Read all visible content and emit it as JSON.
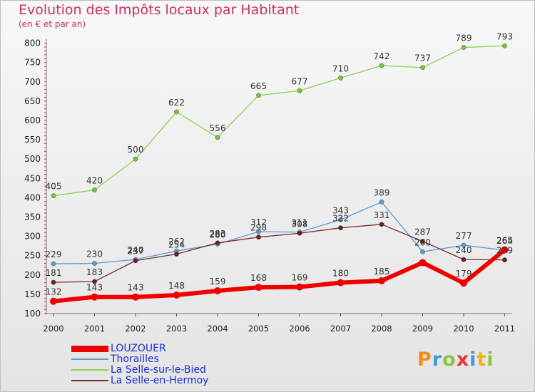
{
  "title": "Evolution des Impôts locaux par Habitant",
  "subtitle": "(en € et par an)",
  "logo": {
    "text": "Proxiti",
    "letters": [
      {
        "ch": "P",
        "color": "#f08a1c"
      },
      {
        "ch": "r",
        "color": "#3a9fd8"
      },
      {
        "ch": "o",
        "color": "#8bc540"
      },
      {
        "ch": "x",
        "color": "#e53a3a"
      },
      {
        "ch": "i",
        "color": "#3a9fd8"
      },
      {
        "ch": "t",
        "color": "#f0b41c"
      },
      {
        "ch": "i",
        "color": "#8bc540"
      }
    ]
  },
  "chart_data": {
    "type": "line",
    "title": "Evolution des Impôts locaux par Habitant",
    "subtitle": "(en € et par an)",
    "xlabel": "",
    "ylabel": "",
    "categories": [
      "2000",
      "2001",
      "2002",
      "2003",
      "2004",
      "2005",
      "2006",
      "2007",
      "2008",
      "2009",
      "2010",
      "2011"
    ],
    "ylim": [
      100,
      800
    ],
    "yticks": [
      100,
      150,
      200,
      250,
      300,
      350,
      400,
      450,
      500,
      550,
      600,
      650,
      700,
      750,
      800
    ],
    "grid": false,
    "legend_position": "bottom-left",
    "series": [
      {
        "name": "LOUZOUER",
        "color": "#ee0000",
        "marker": "#ee0000",
        "width": 6,
        "values": [
          132,
          143,
          143,
          148,
          159,
          168,
          169,
          180,
          185,
          232,
          179,
          265
        ],
        "labels": [
          "132",
          "143",
          "143",
          "148",
          "159",
          "168",
          "169",
          "180",
          "185",
          "",
          "179",
          "265"
        ]
      },
      {
        "name": "Thorailles",
        "color": "#5b9bd5",
        "marker": "#5b9bd5",
        "width": 1.3,
        "values": [
          229,
          230,
          240,
          262,
          280,
          312,
          311,
          343,
          389,
          260,
          277,
          264
        ],
        "labels": [
          "229",
          "230",
          "240",
          "262",
          "280",
          "312",
          "311",
          "343",
          "389",
          "260",
          "277",
          "264"
        ]
      },
      {
        "name": "La Selle-sur-le-Bied",
        "color": "#8fd14f",
        "marker": "#78c23a",
        "width": 1.3,
        "values": [
          405,
          420,
          500,
          622,
          556,
          665,
          677,
          710,
          742,
          737,
          789,
          793
        ],
        "labels": [
          "405",
          "420",
          "500",
          "622",
          "556",
          "665",
          "677",
          "710",
          "742",
          "737",
          "789",
          "793"
        ]
      },
      {
        "name": "La Selle-en-Hermoy",
        "color": "#7a2b2b",
        "marker": "#6b1f1f",
        "width": 1.3,
        "values": [
          181,
          183,
          237,
          254,
          283,
          298,
          308,
          322,
          331,
          287,
          240,
          239
        ],
        "labels": [
          "181",
          "183",
          "237",
          "254",
          "283",
          "298",
          "308",
          "322",
          "331",
          "287",
          "240",
          "239"
        ]
      }
    ]
  }
}
